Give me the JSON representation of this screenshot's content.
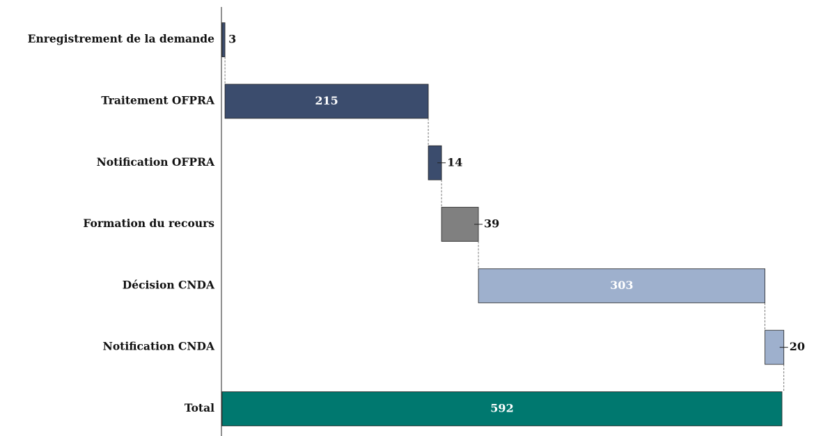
{
  "chart_data": {
    "type": "waterfall",
    "categories": [
      "Enregistrement de la demande",
      "Traitement OFPRA",
      "Notification OFPRA",
      "Formation du recours",
      "Décision CNDA",
      "Notification CNDA",
      "Total"
    ],
    "values": [
      3,
      215,
      14,
      39,
      303,
      20,
      592
    ],
    "colors": [
      "#3b4c6d",
      "#3b4c6d",
      "#3b4c6d",
      "#808080",
      "#9eb0cd",
      "#9eb0cd",
      "#00786f"
    ]
  }
}
